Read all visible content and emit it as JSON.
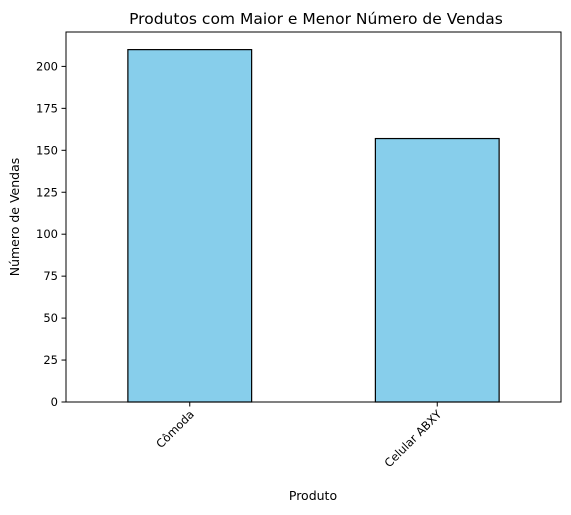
{
  "chart_data": {
    "type": "bar",
    "title": "Produtos com Maior e Menor Número de Vendas",
    "xlabel": "Produto",
    "ylabel": "Número de Vendas",
    "categories": [
      "Cômoda",
      "Celular ABXY"
    ],
    "values": [
      210,
      157
    ],
    "ylim": [
      0,
      220.5
    ],
    "yticks": [
      0,
      25,
      50,
      75,
      100,
      125,
      150,
      175,
      200
    ],
    "x_tick_rotation_deg": 45,
    "grid": false,
    "legend": "none",
    "colors": {
      "bar_fill": "#87ceeb",
      "bar_edge": "#000000",
      "axis": "#000000",
      "text": "#000000",
      "background": "#ffffff"
    }
  }
}
